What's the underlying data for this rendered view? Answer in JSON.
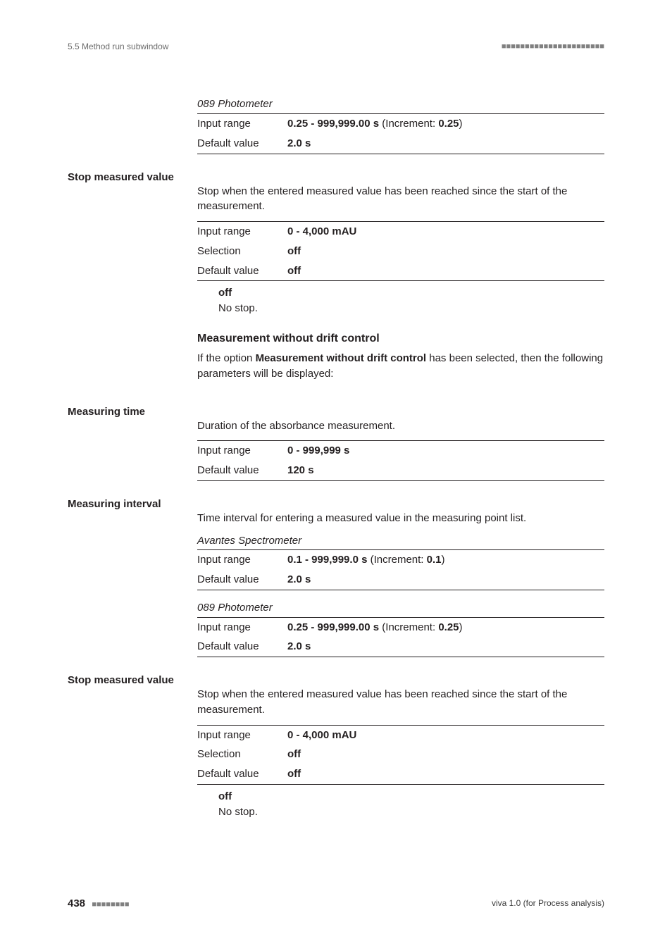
{
  "running_head": {
    "left": "5.5 Method run subwindow",
    "squares": "■■■■■■■■■■■■■■■■■■■■■■"
  },
  "blocks": {
    "photometer_top": {
      "device": "089 Photometer",
      "rows": {
        "input_range": {
          "label": "Input range",
          "bold1": "0.25 - 999,999.00 s",
          "mid": " (Increment: ",
          "bold2": "0.25",
          "tail": ")"
        },
        "default": {
          "label": "Default value",
          "value": "2.0 s"
        }
      }
    },
    "stop1": {
      "label": "Stop measured value",
      "desc": "Stop when the entered measured value has been reached since the start of the measurement.",
      "rows": {
        "input_range": {
          "label": "Input range",
          "value": "0 - 4,000 mAU"
        },
        "selection": {
          "label": "Selection",
          "value": "off"
        },
        "default": {
          "label": "Default value",
          "value": "off"
        }
      },
      "term": {
        "name": "off",
        "def": "No stop."
      }
    },
    "mwdc": {
      "heading": "Measurement without drift control",
      "desc_pre": "If the option ",
      "desc_bold": "Measurement without drift control",
      "desc_post": " has been selected, then the following parameters will be displayed:"
    },
    "measuring_time": {
      "label": "Measuring time",
      "desc": "Duration of the absorbance measurement.",
      "rows": {
        "input_range": {
          "label": "Input range",
          "value": "0 - 999,999 s"
        },
        "default": {
          "label": "Default value",
          "value": "120 s"
        }
      }
    },
    "measuring_interval": {
      "label": "Measuring interval",
      "desc": "Time interval for entering a measured value in the measuring point list.",
      "avantes": {
        "device": "Avantes Spectrometer",
        "rows": {
          "input_range": {
            "label": "Input range",
            "bold1": "0.1 - 999,999.0 s",
            "mid": " (Increment: ",
            "bold2": "0.1",
            "tail": ")"
          },
          "default": {
            "label": "Default value",
            "value": "2.0 s"
          }
        }
      },
      "photometer": {
        "device": "089 Photometer",
        "rows": {
          "input_range": {
            "label": "Input range",
            "bold1": "0.25 - 999,999.00 s",
            "mid": " (Increment: ",
            "bold2": "0.25",
            "tail": ")"
          },
          "default": {
            "label": "Default value",
            "value": "2.0 s"
          }
        }
      }
    },
    "stop2": {
      "label": "Stop measured value",
      "desc": "Stop when the entered measured value has been reached since the start of the measurement.",
      "rows": {
        "input_range": {
          "label": "Input range",
          "value": "0 - 4,000 mAU"
        },
        "selection": {
          "label": "Selection",
          "value": "off"
        },
        "default": {
          "label": "Default value",
          "value": "off"
        }
      },
      "term": {
        "name": "off",
        "def": "No stop."
      }
    }
  },
  "footer": {
    "page": "438",
    "squares": "■■■■■■■■",
    "right": "viva 1.0 (for Process analysis)"
  }
}
